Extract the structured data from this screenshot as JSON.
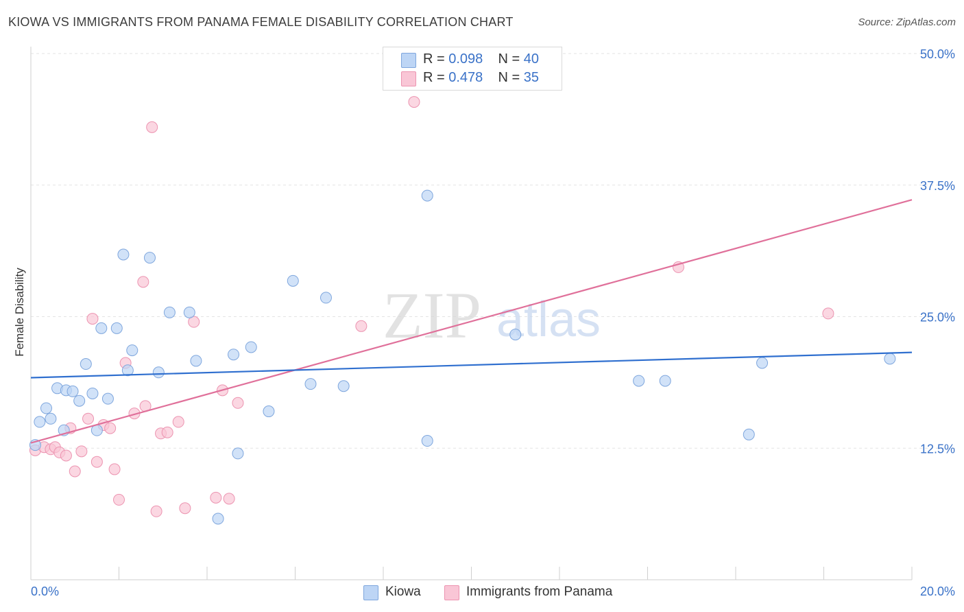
{
  "title": "KIOWA VS IMMIGRANTS FROM PANAMA FEMALE DISABILITY CORRELATION CHART",
  "source": "Source: ZipAtlas.com",
  "watermark": {
    "zip": "ZIP",
    "atlas": "atlas"
  },
  "legend": {
    "kiowa": {
      "r_label": "R =",
      "r_value": "0.098",
      "n_label": "N =",
      "n_value": "40"
    },
    "panama": {
      "r_label": "R =",
      "r_value": "0.478",
      "n_label": "N =",
      "n_value": "35"
    }
  },
  "bottom_legend": {
    "kiowa": "Kiowa",
    "panama": "Immigrants from Panama"
  },
  "colors": {
    "kiowa_fill": "#bdd5f5",
    "kiowa_stroke": "#7ea6dd",
    "kiowa_line": "#2f6fcf",
    "panama_fill": "#f9c6d6",
    "panama_stroke": "#ec93b0",
    "panama_line": "#e0709a",
    "tick_text": "#3a72c8"
  },
  "chart_data": {
    "type": "scatter",
    "title": "KIOWA VS IMMIGRANTS FROM PANAMA FEMALE DISABILITY CORRELATION CHART",
    "xlabel": "",
    "ylabel": "Female Disability",
    "xlim": [
      0,
      20
    ],
    "ylim": [
      0,
      50
    ],
    "x_tick_labels": [
      "0.0%",
      "20.0%"
    ],
    "y_ticks": [
      {
        "value": 12.5,
        "label": "12.5%"
      },
      {
        "value": 25.0,
        "label": "25.0%"
      },
      {
        "value": 37.5,
        "label": "37.5%"
      },
      {
        "value": 50.0,
        "label": "50.0%"
      }
    ],
    "grid": true,
    "series": [
      {
        "name": "Kiowa",
        "r": 0.098,
        "n": 40,
        "trend": {
          "x": [
            0,
            20
          ],
          "y": [
            19.2,
            21.6
          ]
        },
        "points": [
          [
            0.1,
            12.8
          ],
          [
            0.2,
            15.0
          ],
          [
            0.35,
            16.3
          ],
          [
            0.45,
            15.3
          ],
          [
            0.6,
            18.2
          ],
          [
            0.75,
            14.2
          ],
          [
            0.8,
            18.0
          ],
          [
            0.95,
            17.9
          ],
          [
            1.1,
            17.0
          ],
          [
            1.25,
            20.5
          ],
          [
            1.4,
            17.7
          ],
          [
            1.5,
            14.2
          ],
          [
            1.6,
            23.9
          ],
          [
            1.75,
            17.2
          ],
          [
            1.95,
            23.9
          ],
          [
            2.1,
            30.9
          ],
          [
            2.2,
            19.9
          ],
          [
            2.3,
            21.8
          ],
          [
            2.7,
            30.6
          ],
          [
            2.9,
            19.7
          ],
          [
            3.15,
            25.4
          ],
          [
            3.6,
            25.4
          ],
          [
            3.75,
            20.8
          ],
          [
            4.25,
            5.8
          ],
          [
            4.6,
            21.4
          ],
          [
            4.7,
            12.0
          ],
          [
            5.0,
            22.1
          ],
          [
            5.4,
            16.0
          ],
          [
            5.95,
            28.4
          ],
          [
            6.35,
            18.6
          ],
          [
            6.7,
            26.8
          ],
          [
            7.1,
            18.4
          ],
          [
            9.0,
            13.2
          ],
          [
            9.0,
            36.5
          ],
          [
            11.0,
            23.3
          ],
          [
            13.8,
            18.9
          ],
          [
            14.4,
            18.9
          ],
          [
            16.3,
            13.8
          ],
          [
            16.6,
            20.6
          ],
          [
            19.5,
            21.0
          ]
        ]
      },
      {
        "name": "Immigrants from Panama",
        "r": 0.478,
        "n": 35,
        "trend": {
          "x": [
            0,
            20
          ],
          "y": [
            13.0,
            36.1
          ]
        },
        "points": [
          [
            0.1,
            12.3
          ],
          [
            0.3,
            12.6
          ],
          [
            0.45,
            12.4
          ],
          [
            0.55,
            12.6
          ],
          [
            0.65,
            12.1
          ],
          [
            0.8,
            11.8
          ],
          [
            0.9,
            14.4
          ],
          [
            1.0,
            10.3
          ],
          [
            1.15,
            12.2
          ],
          [
            1.3,
            15.3
          ],
          [
            1.4,
            24.8
          ],
          [
            1.5,
            11.2
          ],
          [
            1.65,
            14.7
          ],
          [
            1.8,
            14.4
          ],
          [
            1.9,
            10.5
          ],
          [
            2.0,
            7.6
          ],
          [
            2.15,
            20.6
          ],
          [
            2.35,
            15.8
          ],
          [
            2.55,
            28.3
          ],
          [
            2.6,
            16.5
          ],
          [
            2.75,
            43.0
          ],
          [
            2.85,
            6.5
          ],
          [
            2.95,
            13.9
          ],
          [
            3.1,
            14.0
          ],
          [
            3.35,
            15.0
          ],
          [
            3.5,
            6.8
          ],
          [
            3.7,
            24.5
          ],
          [
            4.2,
            7.8
          ],
          [
            4.35,
            18.0
          ],
          [
            4.5,
            7.7
          ],
          [
            4.7,
            16.8
          ],
          [
            7.5,
            24.1
          ],
          [
            8.7,
            45.4
          ],
          [
            14.7,
            29.7
          ],
          [
            18.1,
            25.3
          ]
        ]
      }
    ]
  }
}
